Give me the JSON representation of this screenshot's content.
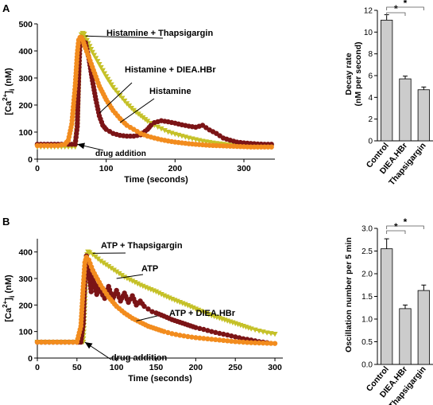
{
  "panels": [
    {
      "label": "A"
    },
    {
      "label": "B"
    }
  ],
  "chart_data": [
    {
      "id": "A-main",
      "type": "line",
      "xlabel": "Time (seconds)",
      "ylabel": "[Ca2+]i (nM)",
      "xlim": [
        0,
        345
      ],
      "ylim": [
        0,
        500
      ],
      "xticks": [
        0,
        100,
        200,
        300
      ],
      "yticks": [
        0,
        100,
        200,
        300,
        400,
        500
      ],
      "grid": false,
      "series": [
        {
          "name": "Histamine + Thapsigargin",
          "color": "#c5c128",
          "marker": "triangle-down",
          "x": [
            0,
            10,
            20,
            30,
            40,
            50,
            55,
            58,
            60,
            62,
            64,
            66,
            68,
            70,
            80,
            90,
            100,
            110,
            120,
            130,
            140,
            150,
            160,
            170,
            180,
            190,
            200,
            210,
            220,
            230,
            240,
            250,
            260,
            270,
            280,
            290,
            300,
            310,
            320,
            330,
            340
          ],
          "y": [
            45,
            45,
            45,
            45,
            45,
            45,
            45,
            130,
            300,
            430,
            460,
            465,
            462,
            450,
            395,
            350,
            305,
            265,
            235,
            205,
            180,
            160,
            140,
            125,
            112,
            100,
            92,
            85,
            78,
            72,
            66,
            62,
            58,
            55,
            52,
            50,
            48,
            46,
            45,
            45,
            45
          ]
        },
        {
          "name": "Histamine + DIEA.HBr",
          "color": "#7b1416",
          "marker": "circle",
          "x": [
            0,
            10,
            20,
            30,
            40,
            50,
            55,
            58,
            60,
            62,
            64,
            66,
            70,
            75,
            80,
            85,
            90,
            95,
            100,
            110,
            120,
            130,
            140,
            150,
            160,
            165,
            170,
            180,
            190,
            200,
            210,
            220,
            230,
            240,
            250,
            260,
            270,
            280,
            290,
            300,
            310,
            320,
            330,
            340
          ],
          "y": [
            55,
            55,
            55,
            55,
            55,
            55,
            55,
            120,
            300,
            440,
            450,
            440,
            430,
            370,
            290,
            220,
            160,
            125,
            110,
            95,
            88,
            85,
            85,
            90,
            110,
            125,
            135,
            142,
            138,
            133,
            127,
            122,
            118,
            125,
            108,
            95,
            78,
            70,
            63,
            60,
            58,
            56,
            55,
            55
          ]
        },
        {
          "name": "Histamine",
          "color": "#f28c1e",
          "marker": "circle",
          "x": [
            0,
            10,
            20,
            30,
            40,
            45,
            50,
            55,
            58,
            60,
            62,
            64,
            66,
            70,
            80,
            90,
            100,
            110,
            120,
            130,
            140,
            150,
            160,
            170,
            180,
            190,
            200,
            210,
            220,
            230,
            240,
            250,
            260,
            270,
            280,
            290,
            300,
            310,
            320,
            330,
            340
          ],
          "y": [
            50,
            50,
            50,
            50,
            55,
            70,
            130,
            270,
            390,
            440,
            450,
            450,
            440,
            410,
            340,
            270,
            220,
            180,
            150,
            125,
            110,
            95,
            85,
            78,
            72,
            67,
            63,
            60,
            57,
            55,
            53,
            51,
            50,
            49,
            48,
            47,
            46,
            45,
            45,
            45,
            45
          ]
        }
      ],
      "annotations": [
        {
          "text": "Histamine + Thapsigargin",
          "point": [
            70,
            455
          ]
        },
        {
          "text": "Histamine + DIEA.HBr",
          "point": [
            90,
            170
          ]
        },
        {
          "text": "Histamine",
          "point": [
            120,
            135
          ]
        },
        {
          "text": "drug addition",
          "point": [
            58,
            55
          ]
        }
      ]
    },
    {
      "id": "A-bar",
      "type": "bar",
      "ylabel": "Decay rate (nM per second)",
      "categories": [
        "Control",
        "DIEA.HBr",
        "Thapsigargin"
      ],
      "values": [
        11.1,
        5.7,
        4.7
      ],
      "errors": [
        0.5,
        0.25,
        0.25
      ],
      "ylim": [
        0,
        12
      ],
      "yticks": [
        0,
        2,
        4,
        6,
        8,
        10,
        12
      ],
      "bar_color": "#cccccc",
      "significance": [
        {
          "pair": [
            "Control",
            "DIEA.HBr"
          ],
          "label": "*"
        },
        {
          "pair": [
            "Control",
            "Thapsigargin"
          ],
          "label": "*"
        }
      ]
    },
    {
      "id": "B-main",
      "type": "line",
      "xlabel": "Time (seconds)",
      "ylabel": "[Ca2+]i (nM)",
      "xlim": [
        0,
        310
      ],
      "ylim": [
        0,
        450
      ],
      "xticks": [
        0,
        50,
        100,
        150,
        200,
        250,
        300
      ],
      "yticks": [
        0,
        100,
        200,
        300,
        400
      ],
      "grid": false,
      "series": [
        {
          "name": "ATP + Thapsigargin",
          "color": "#c5c128",
          "marker": "triangle-down",
          "x": [
            0,
            10,
            20,
            30,
            40,
            50,
            55,
            58,
            60,
            62,
            64,
            66,
            70,
            80,
            90,
            100,
            110,
            120,
            130,
            140,
            150,
            160,
            170,
            180,
            190,
            200,
            210,
            220,
            230,
            240,
            250,
            260,
            270,
            280,
            290,
            300
          ],
          "y": [
            60,
            60,
            60,
            60,
            60,
            60,
            60,
            60,
            200,
            380,
            400,
            397,
            390,
            365,
            345,
            325,
            305,
            290,
            275,
            262,
            250,
            235,
            222,
            210,
            198,
            185,
            172,
            160,
            150,
            140,
            130,
            120,
            110,
            102,
            95,
            90
          ]
        },
        {
          "name": "ATP",
          "color": "#7b1416",
          "marker": "circle",
          "x": [
            0,
            10,
            20,
            30,
            40,
            50,
            52,
            55,
            58,
            60,
            62,
            65,
            68,
            70,
            72,
            75,
            78,
            80,
            85,
            90,
            95,
            100,
            105,
            110,
            115,
            120,
            125,
            130,
            135,
            140,
            145,
            150,
            160,
            170,
            180,
            190,
            200,
            210,
            220,
            230,
            240,
            250,
            260,
            270,
            280,
            290
          ],
          "y": [
            60,
            60,
            60,
            60,
            60,
            60,
            60,
            60,
            130,
            300,
            385,
            320,
            250,
            330,
            280,
            240,
            285,
            250,
            225,
            270,
            220,
            255,
            215,
            245,
            210,
            235,
            200,
            215,
            195,
            185,
            175,
            170,
            158,
            145,
            135,
            125,
            115,
            108,
            100,
            93,
            87,
            80,
            73,
            68,
            62,
            58
          ]
        },
        {
          "name": "ATP + DIEA.HBr",
          "color": "#f28c1e",
          "marker": "circle",
          "x": [
            0,
            10,
            20,
            30,
            40,
            45,
            50,
            55,
            58,
            60,
            62,
            65,
            70,
            80,
            90,
            100,
            110,
            120,
            130,
            140,
            150,
            160,
            170,
            180,
            190,
            200,
            210,
            220,
            230,
            240,
            250,
            260,
            270,
            280,
            290,
            300
          ],
          "y": [
            60,
            60,
            60,
            60,
            60,
            60,
            60,
            120,
            270,
            360,
            380,
            370,
            330,
            275,
            230,
            195,
            170,
            150,
            135,
            120,
            110,
            100,
            92,
            86,
            81,
            77,
            74,
            71,
            68,
            65,
            62,
            60,
            58,
            57,
            56,
            55
          ]
        }
      ],
      "annotations": [
        {
          "text": "ATP + Thapsigargin",
          "point": [
            70,
            395
          ]
        },
        {
          "text": "ATP",
          "point": [
            100,
            300
          ]
        },
        {
          "text": "ATP + DIEA.HBr",
          "point": [
            125,
            140
          ]
        },
        {
          "text": "drug addition",
          "point": [
            60,
            60
          ]
        }
      ]
    },
    {
      "id": "B-bar",
      "type": "bar",
      "ylabel": "Oscillation number per 5 min",
      "categories": [
        "Control",
        "DIEA.HBr",
        "Thapsigargin"
      ],
      "values": [
        2.55,
        1.23,
        1.63
      ],
      "errors": [
        0.22,
        0.08,
        0.12
      ],
      "ylim": [
        0,
        3.0
      ],
      "yticks": [
        0.0,
        0.5,
        1.0,
        1.5,
        2.0,
        2.5,
        3.0
      ],
      "bar_color": "#cccccc",
      "significance": [
        {
          "pair": [
            "Control",
            "DIEA.HBr"
          ],
          "label": "*"
        },
        {
          "pair": [
            "Control",
            "Thapsigargin"
          ],
          "label": "*"
        }
      ]
    }
  ]
}
